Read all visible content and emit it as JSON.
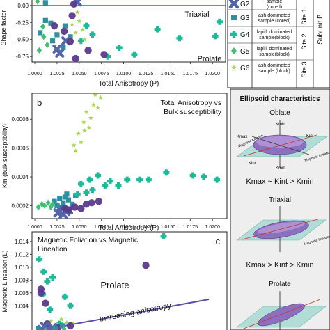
{
  "chart_data": [
    {
      "panel": "a",
      "type": "scatter",
      "title": "",
      "xlabel": "Total Anisotropy (P)",
      "ylabel": "Shape factor",
      "xlim": [
        1.0,
        1.021
      ],
      "ylim": [
        -0.83,
        0.09
      ],
      "xticks": [
        "1.0000",
        "1.0025",
        "1.0050",
        "1.0075",
        "1.0100",
        "1.0125",
        "1.0150",
        "1.0175",
        "1.0200"
      ],
      "yticks": [
        "0.00",
        "-0.25",
        "-0.50",
        "-0.75"
      ],
      "annotations": [
        "Triaxial",
        "Prolate"
      ],
      "reference_line_y": 0.0,
      "series": [
        {
          "key": "G2",
          "points": [
            [
              1.0025,
              -0.64
            ],
            [
              1.0028,
              -0.7
            ],
            [
              1.0035,
              -0.52
            ],
            [
              1.0048,
              0.05
            ]
          ]
        },
        {
          "key": "G3",
          "points": [
            [
              1.0006,
              -0.4
            ],
            [
              1.0012,
              -0.22
            ],
            [
              1.0018,
              -0.26
            ],
            [
              1.002,
              -0.52
            ],
            [
              1.0025,
              -0.43
            ],
            [
              1.0032,
              -0.62
            ],
            [
              1.0034,
              -0.3
            ],
            [
              1.004,
              -0.46
            ],
            [
              1.0012,
              0.04
            ]
          ]
        },
        {
          "key": "G4",
          "points": [
            [
              1.0052,
              -0.52
            ],
            [
              1.0058,
              -0.3
            ],
            [
              1.0065,
              -0.43
            ],
            [
              1.0082,
              -0.75
            ],
            [
              1.0095,
              -0.62
            ],
            [
              1.0112,
              -0.72
            ],
            [
              1.0138,
              -0.35
            ],
            [
              1.0163,
              -0.48
            ],
            [
              1.0203,
              -0.45
            ],
            [
              1.0208,
              -0.24
            ]
          ]
        },
        {
          "key": "G5",
          "points": [
            [
              1.0005,
              -0.66
            ],
            [
              1.0009,
              -0.31
            ],
            [
              1.001,
              -0.46
            ],
            [
              1.0014,
              -0.58
            ],
            [
              1.0003,
              0.06
            ]
          ]
        },
        {
          "key": "G6",
          "points": [
            [
              1.0042,
              -0.28
            ],
            [
              1.0046,
              -0.4
            ],
            [
              1.005,
              -0.23
            ],
            [
              1.0054,
              -0.36
            ],
            [
              1.0056,
              -0.5
            ],
            [
              1.0048,
              -0.1
            ]
          ]
        },
        {
          "key": "G1",
          "points": [
            [
              1.0033,
              -0.38
            ],
            [
              1.004,
              -0.53
            ],
            [
              1.0042,
              -0.15
            ],
            [
              1.0046,
              -0.78
            ],
            [
              1.006,
              -0.66
            ],
            [
              1.0022,
              -0.3
            ],
            [
              1.0078,
              -0.72
            ],
            [
              1.0044,
              0.02
            ]
          ]
        }
      ]
    },
    {
      "panel": "b",
      "type": "scatter",
      "title": "Total Anisotropy vs Bulk susceptibility",
      "xlabel": "Total Anisotropy (P)",
      "ylabel": "Km (bulk susceptibility)",
      "xlim": [
        1.0,
        1.021
      ],
      "ylim": [
        0.00011,
        0.00098
      ],
      "xticks": [
        "1.0000",
        "1.0025",
        "1.0050",
        "1.0075",
        "1.0100",
        "1.0125",
        "1.0150",
        "1.0175",
        "1.0200"
      ],
      "yticks": [
        "0.0008",
        "0.0006",
        "0.0004",
        "0.0002"
      ],
      "series": [
        {
          "key": "G2",
          "points": [
            [
              1.0026,
              0.00015
            ],
            [
              1.0029,
              0.00019
            ],
            [
              1.0032,
              0.00014
            ],
            [
              1.0035,
              0.00016
            ],
            [
              1.0038,
              0.00017
            ]
          ]
        },
        {
          "key": "G3",
          "points": [
            [
              1.0022,
              0.00023
            ],
            [
              1.0025,
              0.0002
            ],
            [
              1.0028,
              0.00025
            ],
            [
              1.0032,
              0.00022
            ],
            [
              1.0034,
              0.00026
            ],
            [
              1.0038,
              0.00024
            ],
            [
              1.0042,
              0.00021
            ],
            [
              1.0036,
              0.00028
            ],
            [
              1.0046,
              0.00027
            ]
          ]
        },
        {
          "key": "G4",
          "points": [
            [
              1.0048,
              0.00028
            ],
            [
              1.0052,
              0.00035
            ],
            [
              1.0058,
              0.00029
            ],
            [
              1.0062,
              0.00038
            ],
            [
              1.0065,
              0.00031
            ],
            [
              1.0071,
              0.00041
            ],
            [
              1.0079,
              0.00034
            ],
            [
              1.0085,
              0.00037
            ],
            [
              1.0094,
              0.00034
            ],
            [
              1.0104,
              0.00038
            ],
            [
              1.0118,
              0.00038
            ],
            [
              1.0128,
              0.00038
            ],
            [
              1.0148,
              0.00043
            ],
            [
              1.0178,
              0.00041
            ],
            [
              1.019,
              0.0004
            ],
            [
              1.0205,
              0.00038
            ]
          ]
        },
        {
          "key": "G5",
          "points": [
            [
              1.0004,
              0.00019
            ],
            [
              1.0008,
              0.00021
            ],
            [
              1.0011,
              0.0002
            ],
            [
              1.0015,
              0.00022
            ],
            [
              1.0018,
              0.00019
            ],
            [
              1.002,
              0.00021
            ]
          ]
        },
        {
          "key": "G6",
          "points": [
            [
              1.0044,
              0.00062
            ],
            [
              1.0049,
              0.0007
            ],
            [
              1.0052,
              0.00064
            ],
            [
              1.0055,
              0.00078
            ],
            [
              1.0058,
              0.00085
            ],
            [
              1.0061,
              0.00074
            ],
            [
              1.0063,
              0.00081
            ],
            [
              1.0066,
              0.0009
            ],
            [
              1.0068,
              0.00097
            ],
            [
              1.0071,
              0.00088
            ],
            [
              1.0074,
              0.00095
            ],
            [
              1.0046,
              0.00058
            ],
            [
              1.0056,
              0.00072
            ]
          ]
        },
        {
          "key": "G1",
          "points": [
            [
              1.0034,
              0.00018
            ],
            [
              1.0038,
              0.00017
            ],
            [
              1.0045,
              0.00019
            ],
            [
              1.0052,
              0.00018
            ],
            [
              1.0058,
              0.00021
            ],
            [
              1.0064,
              0.00022
            ],
            [
              1.0072,
              0.00023
            ]
          ]
        }
      ]
    },
    {
      "panel": "c",
      "type": "scatter",
      "title": "Magnetic Foliation vs Magnetic Lineation",
      "xlabel": "",
      "ylabel": "Magnetic Lineation (L)",
      "xlim": [
        1.0,
        1.021
      ],
      "ylim": [
        0.9997,
        1.0155
      ],
      "yticks": [
        "1.014",
        "1.012",
        "1.010",
        "1.008",
        "1.006",
        "1.004"
      ],
      "annotations": [
        "Prolate",
        "Increasing anisotropy"
      ],
      "series": [
        {
          "key": "G4",
          "points": [
            [
              1.0005,
              1.0112
            ],
            [
              1.001,
              1.0093
            ],
            [
              1.0014,
              1.0078
            ],
            [
              1.002,
              1.0084
            ],
            [
              1.0009,
              1.0058
            ],
            [
              1.0034,
              1.0054
            ],
            [
              1.004,
              1.004
            ],
            [
              1.0017,
              1.0034
            ],
            [
              1.0028,
              1.0012
            ],
            [
              1.0145,
              1.0148
            ]
          ]
        },
        {
          "key": "G6",
          "points": [
            [
              1.0018,
              1.0016
            ],
            [
              1.0024,
              1.0012
            ],
            [
              1.003,
              1.0019
            ],
            [
              1.0032,
              1.0008
            ],
            [
              1.0036,
              1.0014
            ],
            [
              1.0042,
              1.0013
            ],
            [
              1.0015,
              1.0008
            ]
          ]
        },
        {
          "key": "G1",
          "points": [
            [
              1.0007,
              1.0066
            ],
            [
              1.0007,
              1.006
            ],
            [
              1.0012,
              1.0044
            ],
            [
              1.0014,
              1.0012
            ],
            [
              1.0026,
              1.0006
            ],
            [
              1.004,
              1.0009
            ],
            [
              1.0125,
              1.0103
            ]
          ]
        },
        {
          "key": "G2",
          "points": [
            [
              1.0008,
              1.0003
            ],
            [
              1.0011,
              1.0008
            ],
            [
              1.0015,
              1.0003
            ],
            [
              1.002,
              1.0006
            ]
          ]
        },
        {
          "key": "G3",
          "points": [
            [
              1.0004,
              1.0005
            ],
            [
              1.0023,
              1.0005
            ],
            [
              1.0031,
              1.0009
            ]
          ]
        },
        {
          "key": "G5",
          "points": [
            [
              1.0012,
              1.0002
            ],
            [
              1.0033,
              1.0004
            ]
          ]
        }
      ]
    }
  ],
  "styles": {
    "G1": {
      "color": "#5b3a8c",
      "marker": "circle"
    },
    "G2": {
      "color": "#5464a8",
      "marker": "x"
    },
    "G3": {
      "color": "#2f8fa1",
      "marker": "square"
    },
    "G4": {
      "color": "#1dba9a",
      "marker": "plus"
    },
    "G5": {
      "color": "#3fbf72",
      "marker": "diamond"
    },
    "G6": {
      "color": "#a5d84a",
      "marker": "star"
    },
    "accent_line": "#3a67b5",
    "anisotropy_arrow": "#5b4ea8"
  },
  "legend": {
    "items": [
      {
        "key": "G2",
        "label": "G2",
        "desc": "sample (cored)"
      },
      {
        "key": "G3",
        "label": "G3",
        "desc": "ash dominated sample (cored)"
      },
      {
        "key": "G4",
        "label": "G4",
        "desc": "lapilli dominated sample(block)"
      },
      {
        "key": "G5",
        "label": "G5",
        "desc": "lapilli dominated sample(block)"
      },
      {
        "key": "G6",
        "label": "G6",
        "desc": "ash dominated sample (block)"
      }
    ],
    "sites": [
      "Site 1",
      "Site 2",
      "Site 3"
    ],
    "subunit": "Subunit B"
  },
  "ellipsoid": {
    "title": "Ellipsoid characteristics",
    "oblate": {
      "title": "Oblate",
      "formula": "Kmax ~ Kint > Kmin"
    },
    "triaxial": {
      "title": "Triaxial",
      "formula": "Kmax > Kint > Kmin"
    },
    "prolate": {
      "title": "Prolate"
    },
    "labels": {
      "kmin": "Kmin",
      "kint": "Kint",
      "kmax": "Kmax",
      "foliation": "Magnetic foliation",
      "lineation": "Magnetic lineation"
    }
  },
  "panel_labels": {
    "b": "b",
    "c": "c"
  }
}
